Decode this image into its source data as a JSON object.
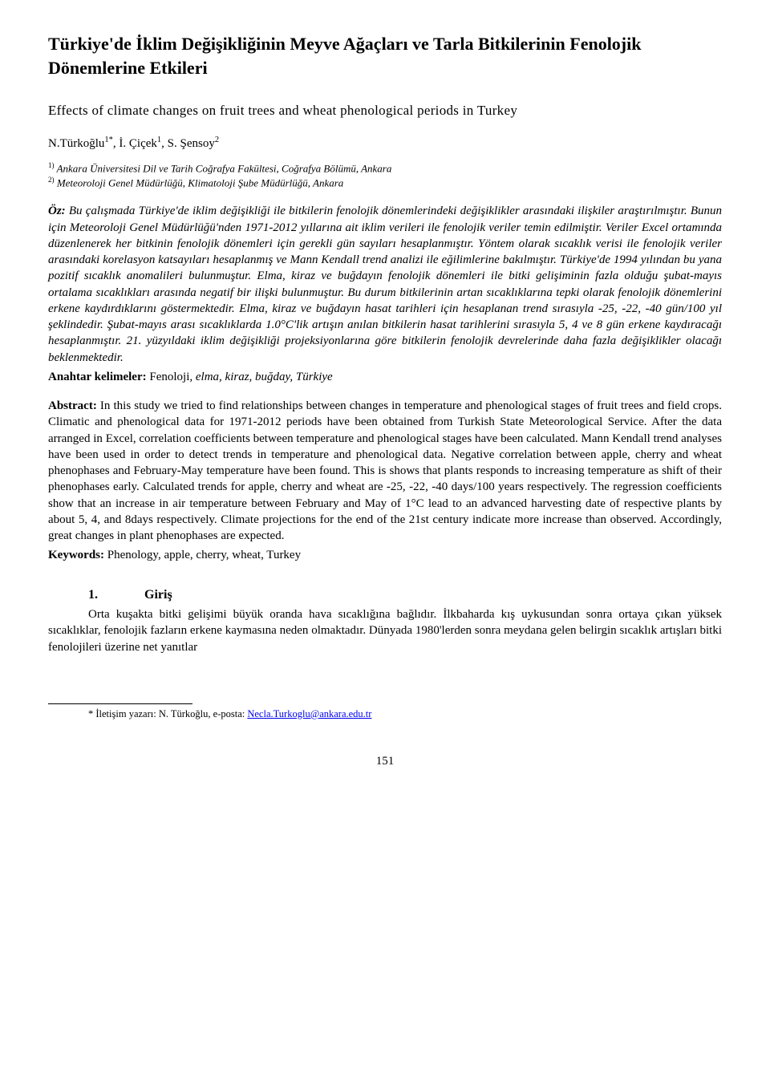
{
  "title": "Türkiye'de İklim Değişikliğinin Meyve Ağaçları ve Tarla Bitkilerinin Fenolojik Dönemlerine Etkileri",
  "subtitle": "Effects of climate changes on fruit trees and wheat phenological periods in Turkey",
  "authors_html": "N.Türkoğlu<sup>1*</sup>, İ. Çiçek<sup>1</sup>, S. Şensoy<sup>2</sup>",
  "affiliations_html": "<sup>1)</sup> Ankara Üniversitesi Dil ve Tarih Coğrafya Fakültesi, Coğrafya Bölümü, Ankara<br><sup>2)</sup> Meteoroloji Genel Müdürlüğü, Klimatoloji Şube Müdürlüğü, Ankara",
  "oz_label": "Öz: ",
  "oz_body": "Bu çalışmada Türkiye'de iklim değişikliği ile bitkilerin fenolojik dönemlerindeki değişiklikler arasındaki ilişkiler araştırılmıştır. Bunun için Meteoroloji Genel Müdürlüğü'nden 1971-2012 yıllarına ait iklim verileri ile fenolojik veriler temin edilmiştir. Veriler Excel ortamında düzenlenerek her bitkinin fenolojik dönemleri için gerekli gün sayıları hesaplanmıştır. Yöntem olarak sıcaklık verisi ile fenolojik veriler arasındaki korelasyon katsayıları hesaplanmış ve Mann Kendall trend analizi ile eğilimlerine bakılmıştır. Türkiye'de 1994 yılından bu yana pozitif sıcaklık anomalileri bulunmuştur. Elma, kiraz ve buğdayın fenolojik dönemleri ile bitki gelişiminin fazla olduğu şubat-mayıs ortalama sıcaklıkları arasında negatif bir ilişki bulunmuştur. Bu durum bitkilerinin artan sıcaklıklarına tepki olarak fenolojik dönemlerini erkene kaydırdıklarını göstermektedir. Elma, kiraz ve buğdayın hasat tarihleri için hesaplanan trend sırasıyla -25, -22, -40 gün/100 yıl şeklindedir. Şubat-mayıs arası sıcaklıklarda 1.0°C'lik artışın anılan bitkilerin hasat tarihlerini sırasıyla 5, 4 ve 8 gün erkene kaydıracağı hesaplanmıştır. 21. yüzyıldaki iklim değişikliği projeksiyonlarına göre bitkilerin fenolojik devrelerinde daha fazla değişiklikler olacağı beklenmektedir.",
  "anahtar_label": "Anahtar kelimeler: ",
  "anahtar_first": "Fenoloji",
  "anahtar_rest": ", elma, kiraz, buğday, Türkiye",
  "abstract_label": "Abstract:  ",
  "abstract_body": "In this study we tried to find relationships between changes in temperature and phenological stages of fruit trees and field crops. Climatic and phenological data for 1971-2012 periods have been obtained from Turkish State Meteorological Service. After the data arranged in Excel, correlation coefficients between temperature and phenological stages have been calculated. Mann Kendall trend analyses have been used in order to detect trends in temperature and phenological data. Negative correlation between apple, cherry and wheat phenophases and February-May temperature have been found. This is shows that plants responds to increasing temperature as shift of their phenophases early. Calculated trends for apple, cherry and wheat are -25, -22, -40 days/100 years respectively. The regression coefficients show that an increase in air temperature between February and May of 1°C lead to an advanced harvesting date of respective plants by about 5, 4, and 8days respectively. Climate projections for the end of the 21st century indicate more increase than observed.  Accordingly, great changes in plant phenophases are expected.",
  "keywords_label": "Keywords: ",
  "keywords_vals": "Phenology, apple, cherry, wheat, Turkey",
  "section_num": "1.",
  "section_title": "Giriş",
  "body_para": "Orta kuşakta bitki gelişimi büyük oranda hava sıcaklığına bağlıdır. İlkbaharda kış uykusundan sonra ortaya çıkan yüksek sıcaklıklar, fenolojik fazların erkene kaymasına neden olmaktadır.  Dünyada 1980'lerden sonra meydana gelen belirgin sıcaklık artışları bitki fenolojileri üzerine net yanıtlar",
  "footnote_prefix": "* İletişim yazarı: N. Türkoğlu, e-posta: ",
  "footnote_email": "Necla.Turkoglu@ankara.edu.tr",
  "page_number": "151"
}
